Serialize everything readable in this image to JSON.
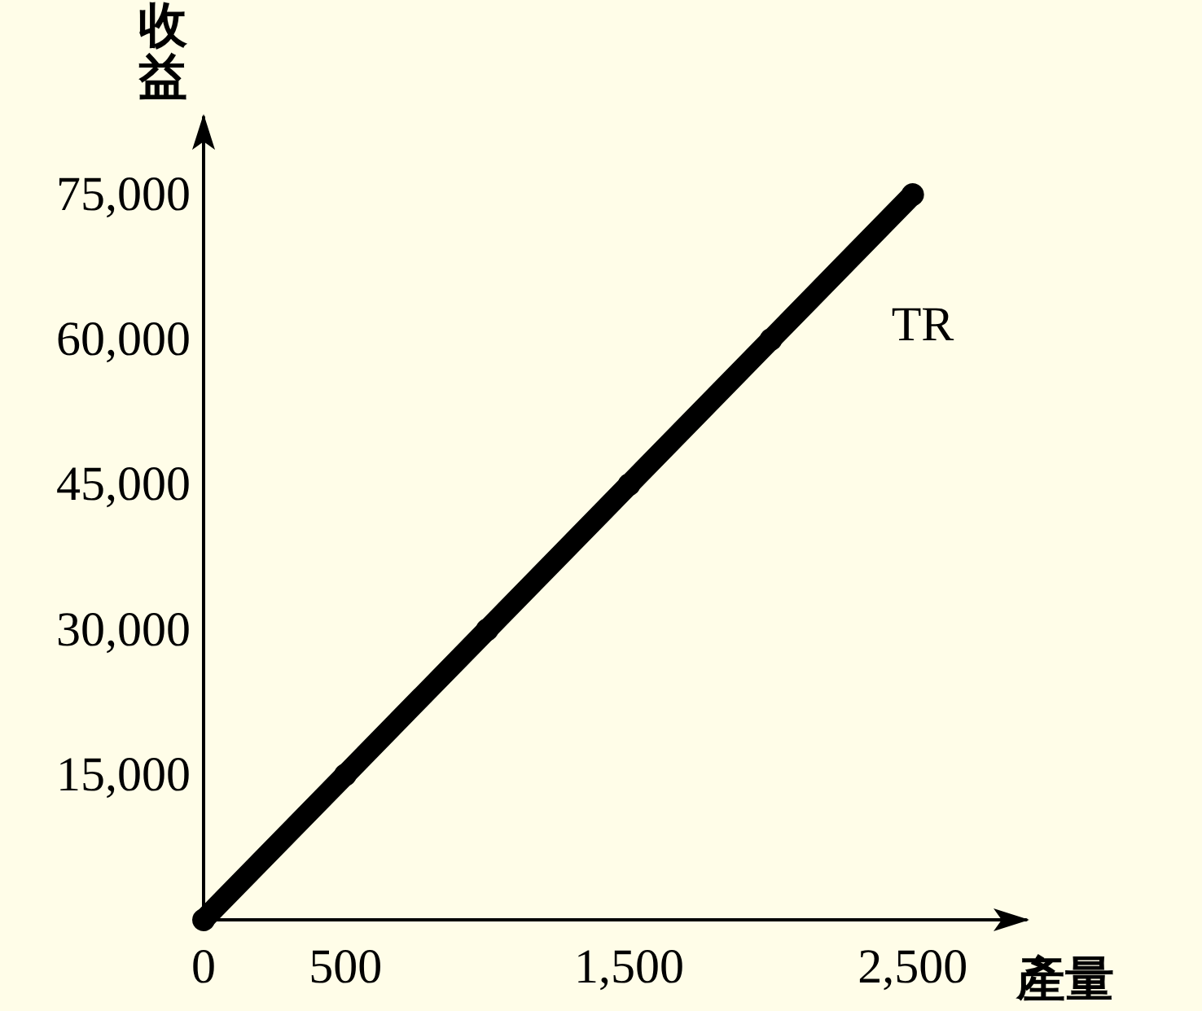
{
  "chart_data": {
    "type": "line",
    "xlabel": "產量",
    "ylabel": "收益",
    "x": [
      0,
      500,
      1000,
      1500,
      2000,
      2500
    ],
    "series": [
      {
        "name": "TR",
        "color": "#000000",
        "values": [
          0,
          15000,
          30000,
          45000,
          60000,
          75000
        ]
      }
    ],
    "xlim": [
      0,
      2900
    ],
    "ylim": [
      0,
      83000
    ],
    "xticks": [
      0,
      500,
      {
        "value": 1500,
        "label": "1,500"
      },
      {
        "value": 2500,
        "label": "2,500"
      }
    ],
    "yticks": [
      {
        "value": 15000,
        "label": "15,000"
      },
      {
        "value": 30000,
        "label": "30,000"
      },
      {
        "value": 45000,
        "label": "45,000"
      },
      {
        "value": 60000,
        "label": "60,000"
      },
      {
        "value": 75000,
        "label": "75,000"
      }
    ],
    "marker": "circle",
    "line_style": "solid",
    "grid": false,
    "legend": false
  }
}
